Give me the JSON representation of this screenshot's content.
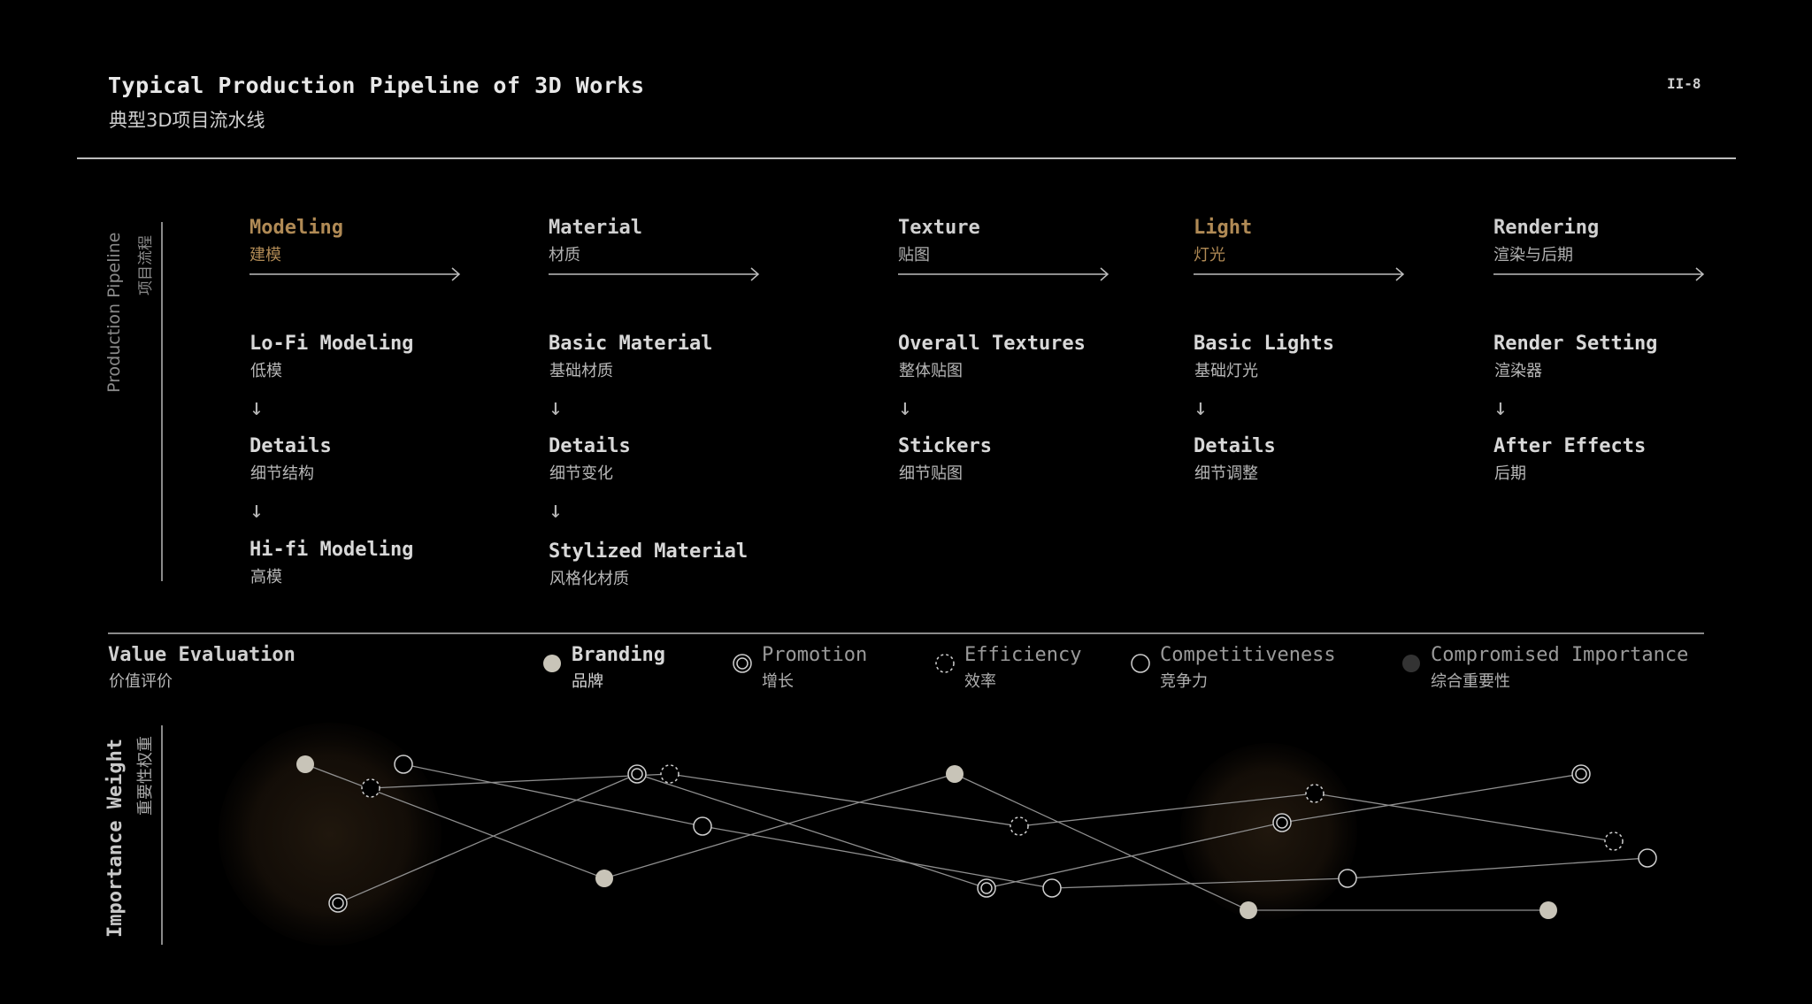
{
  "header": {
    "title": "Typical Production Pipeline of 3D Works",
    "subtitle": "典型3D项目流水线",
    "page_number": "II-8"
  },
  "pipeline": {
    "label_en": "Production Pipeline",
    "label_zh": "项目流程",
    "stages": [
      {
        "en": "Modeling",
        "zh": "建模",
        "accent": true,
        "steps": [
          {
            "en": "Lo-Fi Modeling",
            "zh": "低模"
          },
          {
            "en": "Details",
            "zh": "细节结构"
          },
          {
            "en": "Hi-fi Modeling",
            "zh": "高模"
          }
        ]
      },
      {
        "en": "Material",
        "zh": "材质",
        "accent": false,
        "steps": [
          {
            "en": "Basic Material",
            "zh": "基础材质"
          },
          {
            "en": "Details",
            "zh": "细节变化"
          },
          {
            "en": "Stylized Material",
            "zh": "风格化材质"
          }
        ]
      },
      {
        "en": "Texture",
        "zh": "贴图",
        "accent": false,
        "steps": [
          {
            "en": "Overall Textures",
            "zh": "整体贴图"
          },
          {
            "en": "Stickers",
            "zh": "细节贴图"
          }
        ]
      },
      {
        "en": "Light",
        "zh": "灯光",
        "accent": true,
        "steps": [
          {
            "en": "Basic Lights",
            "zh": "基础灯光"
          },
          {
            "en": "Details",
            "zh": "细节调整"
          }
        ]
      },
      {
        "en": "Rendering",
        "zh": "渲染与后期",
        "accent": false,
        "steps": [
          {
            "en": "Render Setting",
            "zh": "渲染器"
          },
          {
            "en": "After Effects",
            "zh": "后期"
          }
        ]
      }
    ]
  },
  "value_evaluation": {
    "title_en": "Value Evaluation",
    "title_zh": "价值评价",
    "legend": [
      {
        "en": "Branding",
        "zh": "品牌",
        "icon": "filled-circle-icon"
      },
      {
        "en": "Promotion",
        "zh": "增长",
        "icon": "double-ring-icon"
      },
      {
        "en": "Efficiency",
        "zh": "效率",
        "icon": "dashed-circle-icon"
      },
      {
        "en": "Competitiveness",
        "zh": "竞争力",
        "icon": "hollow-circle-icon"
      },
      {
        "en": "Compromised Importance",
        "zh": "综合重要性",
        "icon": "dark-filled-circle-icon"
      }
    ]
  },
  "importance_weight": {
    "label_en": "Importance Weight",
    "label_zh": "重要性权重"
  },
  "colors": {
    "background": "#000000",
    "accent": "#b08a55",
    "line": "#9a9a9a",
    "branding_fill": "#c8c4b8"
  }
}
